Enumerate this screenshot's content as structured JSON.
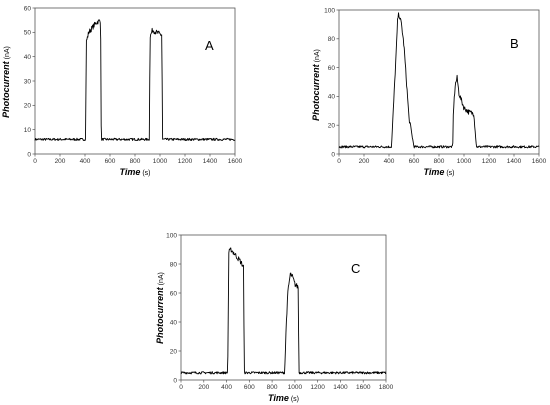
{
  "chart_data": [
    {
      "type": "line",
      "panel_label": "A",
      "xlabel": "Time",
      "xunit": "(s)",
      "ylabel": "Photocurrent",
      "yunit": "(nA)",
      "xlim": [
        0,
        1600
      ],
      "ylim": [
        0,
        60
      ],
      "xticks": [
        0,
        200,
        400,
        600,
        800,
        1000,
        1200,
        1400,
        1600
      ],
      "yticks": [
        0,
        10,
        20,
        30,
        40,
        50,
        60
      ],
      "series": [
        {
          "color": "#000000",
          "x": [
            0,
            395,
            405,
            410,
            430,
            460,
            490,
            525,
            530,
            540,
            900,
            915,
            920,
            940,
            970,
            1010,
            1015,
            1020,
            1600
          ],
          "y": [
            6,
            6,
            6,
            46,
            50,
            52,
            54,
            55,
            6,
            6,
            6,
            6,
            48,
            51,
            50,
            49,
            49,
            6,
            6
          ]
        }
      ]
    },
    {
      "type": "line",
      "panel_label": "B",
      "xlabel": "Time",
      "xunit": "(s)",
      "ylabel": "Photocurrent",
      "yunit": "(nA)",
      "xlim": [
        0,
        1600
      ],
      "ylim": [
        0,
        100
      ],
      "xticks": [
        0,
        200,
        400,
        600,
        800,
        1000,
        1200,
        1400,
        1600
      ],
      "yticks": [
        0,
        20,
        40,
        60,
        80,
        100
      ],
      "series": [
        {
          "color": "#000000",
          "x": [
            0,
            400,
            420,
            440,
            460,
            470,
            480,
            500,
            520,
            540,
            560,
            600,
            900,
            910,
            915,
            930,
            945,
            960,
            1000,
            1040,
            1080,
            1090,
            1100,
            1600
          ],
          "y": [
            5,
            5,
            5,
            40,
            75,
            95,
            97,
            90,
            75,
            50,
            25,
            5,
            5,
            5,
            30,
            48,
            53,
            42,
            32,
            29,
            28,
            15,
            5,
            5
          ]
        }
      ]
    },
    {
      "type": "line",
      "panel_label": "C",
      "xlabel": "Time",
      "xunit": "(s)",
      "ylabel": "Photocurrent",
      "yunit": "(nA)",
      "xlim": [
        0,
        1800
      ],
      "ylim": [
        0,
        100
      ],
      "xticks": [
        0,
        200,
        400,
        600,
        800,
        1000,
        1200,
        1400,
        1600,
        1800
      ],
      "yticks": [
        0,
        20,
        40,
        60,
        80,
        100
      ],
      "series": [
        {
          "color": "#000000",
          "x": [
            0,
            400,
            410,
            420,
            440,
            480,
            520,
            550,
            555,
            560,
            900,
            910,
            925,
            940,
            960,
            980,
            1000,
            1030,
            1035,
            1040,
            1800
          ],
          "y": [
            5,
            5,
            5,
            88,
            90,
            86,
            82,
            78,
            5,
            5,
            5,
            5,
            40,
            62,
            73,
            71,
            66,
            64,
            5,
            5,
            5
          ]
        }
      ]
    }
  ]
}
